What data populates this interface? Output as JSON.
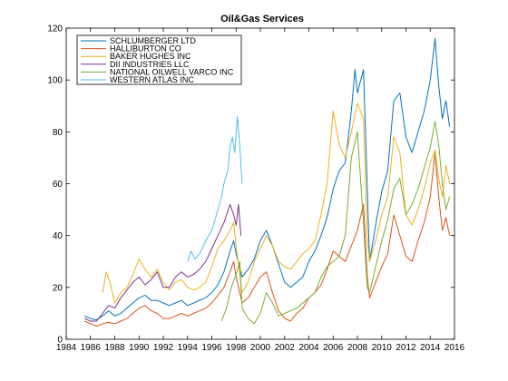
{
  "chart_data": {
    "type": "line",
    "title": "Oil&Gas Services",
    "xlabel": "",
    "ylabel": "",
    "xlim": [
      1984,
      2016
    ],
    "ylim": [
      0,
      120
    ],
    "x_ticks": [
      1984,
      1986,
      1988,
      1990,
      1992,
      1994,
      1996,
      1998,
      2000,
      2002,
      2004,
      2006,
      2008,
      2010,
      2012,
      2014,
      2016
    ],
    "y_ticks": [
      0,
      20,
      40,
      60,
      80,
      100,
      120
    ],
    "grid": false,
    "legend_position": "top-left",
    "series": [
      {
        "name": "SCHLUMBERGER LTD",
        "color": "#0072bd",
        "points": [
          [
            1985.5,
            9
          ],
          [
            1986,
            8
          ],
          [
            1986.5,
            7.5
          ],
          [
            1987,
            9
          ],
          [
            1987.5,
            11
          ],
          [
            1988,
            9
          ],
          [
            1988.5,
            10
          ],
          [
            1989,
            12
          ],
          [
            1989.5,
            14
          ],
          [
            1990,
            16
          ],
          [
            1990.5,
            17
          ],
          [
            1991,
            15
          ],
          [
            1991.5,
            15
          ],
          [
            1992,
            14
          ],
          [
            1992.5,
            13
          ],
          [
            1993,
            14
          ],
          [
            1993.5,
            15
          ],
          [
            1994,
            13
          ],
          [
            1994.5,
            14
          ],
          [
            1995,
            15
          ],
          [
            1995.5,
            16
          ],
          [
            1996,
            18
          ],
          [
            1996.5,
            21
          ],
          [
            1997,
            26
          ],
          [
            1997.5,
            34
          ],
          [
            1997.8,
            38
          ],
          [
            1998,
            33
          ],
          [
            1998.5,
            24
          ],
          [
            1999,
            27
          ],
          [
            1999.5,
            31
          ],
          [
            2000,
            38
          ],
          [
            2000.5,
            42
          ],
          [
            2001,
            36
          ],
          [
            2001.5,
            29
          ],
          [
            2002,
            22
          ],
          [
            2002.5,
            20
          ],
          [
            2003,
            22
          ],
          [
            2003.5,
            24
          ],
          [
            2004,
            30
          ],
          [
            2004.5,
            34
          ],
          [
            2005,
            40
          ],
          [
            2005.5,
            47
          ],
          [
            2006,
            58
          ],
          [
            2006.5,
            65
          ],
          [
            2007,
            68
          ],
          [
            2007.5,
            88
          ],
          [
            2007.8,
            104
          ],
          [
            2008,
            95
          ],
          [
            2008.5,
            104
          ],
          [
            2008.8,
            60
          ],
          [
            2009,
            30
          ],
          [
            2009.5,
            44
          ],
          [
            2010,
            57
          ],
          [
            2010.5,
            65
          ],
          [
            2011,
            92
          ],
          [
            2011.5,
            95
          ],
          [
            2012,
            78
          ],
          [
            2012.5,
            72
          ],
          [
            2013,
            80
          ],
          [
            2013.5,
            88
          ],
          [
            2014,
            100
          ],
          [
            2014.4,
            116
          ],
          [
            2014.7,
            98
          ],
          [
            2015,
            85
          ],
          [
            2015.3,
            92
          ],
          [
            2015.6,
            82
          ]
        ]
      },
      {
        "name": "HALLIBURTON CO",
        "color": "#d95319",
        "points": [
          [
            1985.5,
            7
          ],
          [
            1986,
            6
          ],
          [
            1986.5,
            5
          ],
          [
            1987,
            6
          ],
          [
            1987.5,
            6.5
          ],
          [
            1988,
            6
          ],
          [
            1988.5,
            7
          ],
          [
            1989,
            8
          ],
          [
            1989.5,
            10
          ],
          [
            1990,
            12
          ],
          [
            1990.5,
            13
          ],
          [
            1991,
            11
          ],
          [
            1991.5,
            10
          ],
          [
            1992,
            8
          ],
          [
            1992.5,
            8
          ],
          [
            1993,
            9
          ],
          [
            1993.5,
            10
          ],
          [
            1994,
            9
          ],
          [
            1994.5,
            10
          ],
          [
            1995,
            11
          ],
          [
            1995.5,
            12
          ],
          [
            1996,
            14
          ],
          [
            1996.5,
            17
          ],
          [
            1997,
            20
          ],
          [
            1997.5,
            26
          ],
          [
            1997.8,
            30
          ],
          [
            1998,
            24
          ],
          [
            1998.5,
            14
          ],
          [
            1999,
            16
          ],
          [
            1999.5,
            20
          ],
          [
            2000,
            24
          ],
          [
            2000.5,
            26
          ],
          [
            2001,
            18
          ],
          [
            2001.5,
            11
          ],
          [
            2002,
            8
          ],
          [
            2002.5,
            7
          ],
          [
            2003,
            10
          ],
          [
            2003.5,
            12
          ],
          [
            2004,
            16
          ],
          [
            2004.5,
            18
          ],
          [
            2005,
            21
          ],
          [
            2005.5,
            27
          ],
          [
            2006,
            34
          ],
          [
            2006.5,
            32
          ],
          [
            2007,
            30
          ],
          [
            2007.5,
            36
          ],
          [
            2008,
            42
          ],
          [
            2008.5,
            52
          ],
          [
            2008.8,
            25
          ],
          [
            2009,
            16
          ],
          [
            2009.5,
            22
          ],
          [
            2010,
            28
          ],
          [
            2010.5,
            33
          ],
          [
            2011,
            48
          ],
          [
            2011.5,
            40
          ],
          [
            2012,
            32
          ],
          [
            2012.5,
            30
          ],
          [
            2013,
            38
          ],
          [
            2013.5,
            45
          ],
          [
            2014,
            55
          ],
          [
            2014.4,
            72
          ],
          [
            2014.7,
            55
          ],
          [
            2015,
            42
          ],
          [
            2015.3,
            47
          ],
          [
            2015.6,
            40
          ]
        ]
      },
      {
        "name": "BAKER HUGHES INC",
        "color": "#edb120",
        "points": [
          [
            1987,
            18
          ],
          [
            1987.3,
            26
          ],
          [
            1987.6,
            22
          ],
          [
            1988,
            14
          ],
          [
            1988.5,
            18
          ],
          [
            1989,
            20
          ],
          [
            1989.5,
            25
          ],
          [
            1990,
            31
          ],
          [
            1990.5,
            27
          ],
          [
            1991,
            24
          ],
          [
            1991.5,
            27
          ],
          [
            1992,
            22
          ],
          [
            1992.5,
            19
          ],
          [
            1993,
            22
          ],
          [
            1993.5,
            23
          ],
          [
            1994,
            20
          ],
          [
            1994.5,
            19
          ],
          [
            1995,
            20
          ],
          [
            1995.5,
            22
          ],
          [
            1996,
            28
          ],
          [
            1996.5,
            35
          ],
          [
            1997,
            38
          ],
          [
            1997.5,
            42
          ],
          [
            1997.8,
            45
          ],
          [
            1998,
            36
          ],
          [
            1998.5,
            18
          ],
          [
            1999,
            22
          ],
          [
            1999.5,
            30
          ],
          [
            2000,
            35
          ],
          [
            2000.5,
            40
          ],
          [
            2001,
            36
          ],
          [
            2001.5,
            30
          ],
          [
            2002,
            28
          ],
          [
            2002.5,
            27
          ],
          [
            2003,
            30
          ],
          [
            2003.5,
            33
          ],
          [
            2004,
            35
          ],
          [
            2004.5,
            38
          ],
          [
            2005,
            48
          ],
          [
            2005.5,
            60
          ],
          [
            2006,
            88
          ],
          [
            2006.5,
            75
          ],
          [
            2007,
            70
          ],
          [
            2007.5,
            80
          ],
          [
            2008,
            91
          ],
          [
            2008.5,
            85
          ],
          [
            2008.8,
            40
          ],
          [
            2009,
            30
          ],
          [
            2009.5,
            38
          ],
          [
            2010,
            48
          ],
          [
            2010.5,
            55
          ],
          [
            2011,
            78
          ],
          [
            2011.5,
            72
          ],
          [
            2012,
            48
          ],
          [
            2012.5,
            44
          ],
          [
            2013,
            50
          ],
          [
            2013.5,
            58
          ],
          [
            2014,
            68
          ],
          [
            2014.4,
            73
          ],
          [
            2014.7,
            62
          ],
          [
            2015,
            55
          ],
          [
            2015.3,
            67
          ],
          [
            2015.6,
            60
          ]
        ]
      },
      {
        "name": "DII INDUSTRIES LLC",
        "color": "#7e2f8e",
        "points": [
          [
            1985.5,
            8
          ],
          [
            1986,
            7
          ],
          [
            1986.5,
            7
          ],
          [
            1987,
            10
          ],
          [
            1987.5,
            13
          ],
          [
            1988,
            12
          ],
          [
            1988.5,
            16
          ],
          [
            1989,
            19
          ],
          [
            1989.5,
            22
          ],
          [
            1990,
            24
          ],
          [
            1990.5,
            21
          ],
          [
            1991,
            23
          ],
          [
            1991.5,
            26
          ],
          [
            1992,
            20
          ],
          [
            1992.5,
            20
          ],
          [
            1993,
            24
          ],
          [
            1993.5,
            26
          ],
          [
            1994,
            24
          ],
          [
            1994.5,
            25
          ],
          [
            1995,
            27
          ],
          [
            1995.5,
            30
          ],
          [
            1996,
            35
          ],
          [
            1996.5,
            40
          ],
          [
            1997,
            45
          ],
          [
            1997.5,
            52
          ],
          [
            1997.8,
            48
          ],
          [
            1998,
            44
          ],
          [
            1998.2,
            52
          ],
          [
            1998.4,
            40
          ]
        ]
      },
      {
        "name": "NATIONAL OILWELL VARCO INC",
        "color": "#77ac30",
        "points": [
          [
            1996.8,
            7
          ],
          [
            1997.2,
            12
          ],
          [
            1997.6,
            20
          ],
          [
            1998,
            25
          ],
          [
            1998.3,
            30
          ],
          [
            1998.5,
            12
          ],
          [
            1999,
            8
          ],
          [
            1999.5,
            6
          ],
          [
            2000,
            10
          ],
          [
            2000.5,
            18
          ],
          [
            2001,
            14
          ],
          [
            2001.5,
            9
          ],
          [
            2002,
            10
          ],
          [
            2002.5,
            11
          ],
          [
            2003,
            12
          ],
          [
            2003.5,
            14
          ],
          [
            2004,
            16
          ],
          [
            2004.5,
            18
          ],
          [
            2005,
            24
          ],
          [
            2005.5,
            28
          ],
          [
            2006,
            30
          ],
          [
            2006.5,
            32
          ],
          [
            2007,
            40
          ],
          [
            2007.5,
            70
          ],
          [
            2008,
            80
          ],
          [
            2008.5,
            45
          ],
          [
            2008.8,
            20
          ],
          [
            2009,
            18
          ],
          [
            2009.5,
            28
          ],
          [
            2010,
            38
          ],
          [
            2010.5,
            46
          ],
          [
            2011,
            58
          ],
          [
            2011.5,
            62
          ],
          [
            2012,
            48
          ],
          [
            2012.5,
            52
          ],
          [
            2013,
            58
          ],
          [
            2013.5,
            66
          ],
          [
            2014,
            74
          ],
          [
            2014.4,
            84
          ],
          [
            2014.7,
            75
          ],
          [
            2015,
            60
          ],
          [
            2015.3,
            50
          ],
          [
            2015.6,
            55
          ]
        ]
      },
      {
        "name": "WESTERN ATLAS INC",
        "color": "#4dbeee",
        "points": [
          [
            1994,
            30
          ],
          [
            1994.3,
            34
          ],
          [
            1994.6,
            31
          ],
          [
            1995,
            33
          ],
          [
            1995.5,
            38
          ],
          [
            1996,
            42
          ],
          [
            1996.5,
            50
          ],
          [
            1996.8,
            55
          ],
          [
            1997,
            60
          ],
          [
            1997.3,
            65
          ],
          [
            1997.5,
            74
          ],
          [
            1997.7,
            78
          ],
          [
            1997.9,
            72
          ],
          [
            1998.1,
            86
          ],
          [
            1998.3,
            75
          ],
          [
            1998.5,
            60
          ]
        ]
      }
    ]
  }
}
